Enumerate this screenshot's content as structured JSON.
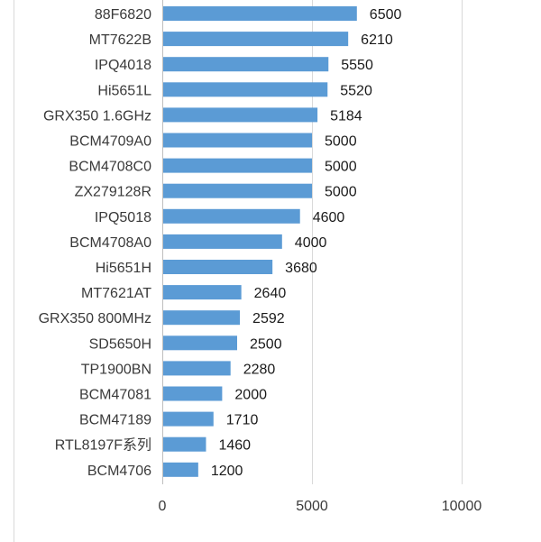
{
  "chart_data": {
    "type": "bar",
    "orientation": "horizontal",
    "categories": [
      "88F6820",
      "MT7622B",
      "IPQ4018",
      "Hi5651L",
      "GRX350 1.6GHz",
      "BCM4709A0",
      "BCM4708C0",
      "ZX279128R",
      "IPQ5018",
      "BCM4708A0",
      "Hi5651H",
      "MT7621AT",
      "GRX350 800MHz",
      "SD5650H",
      "TP1900BN",
      "BCM47081",
      "BCM47189",
      "RTL8197F系列",
      "BCM4706"
    ],
    "values": [
      6500,
      6210,
      5550,
      5520,
      5184,
      5000,
      5000,
      5000,
      4600,
      4000,
      3680,
      2640,
      2592,
      2500,
      2280,
      2000,
      1710,
      1460,
      1200
    ],
    "value_labels": [
      "6500",
      "6210",
      "5550",
      "5520",
      "5184",
      "5000",
      "5000",
      "5000",
      "4600",
      "4000",
      "3680",
      "2640",
      "2592",
      "2500",
      "2280",
      "2000",
      "1710",
      "1460",
      "1200"
    ],
    "xlim": [
      0,
      10000
    ],
    "xticks": [
      0,
      5000,
      10000
    ],
    "xtick_labels": [
      "0",
      "5000",
      "10000"
    ],
    "grid": "vertical",
    "bar_color": "#5b9bd5",
    "title": "",
    "xlabel": "",
    "ylabel": ""
  }
}
